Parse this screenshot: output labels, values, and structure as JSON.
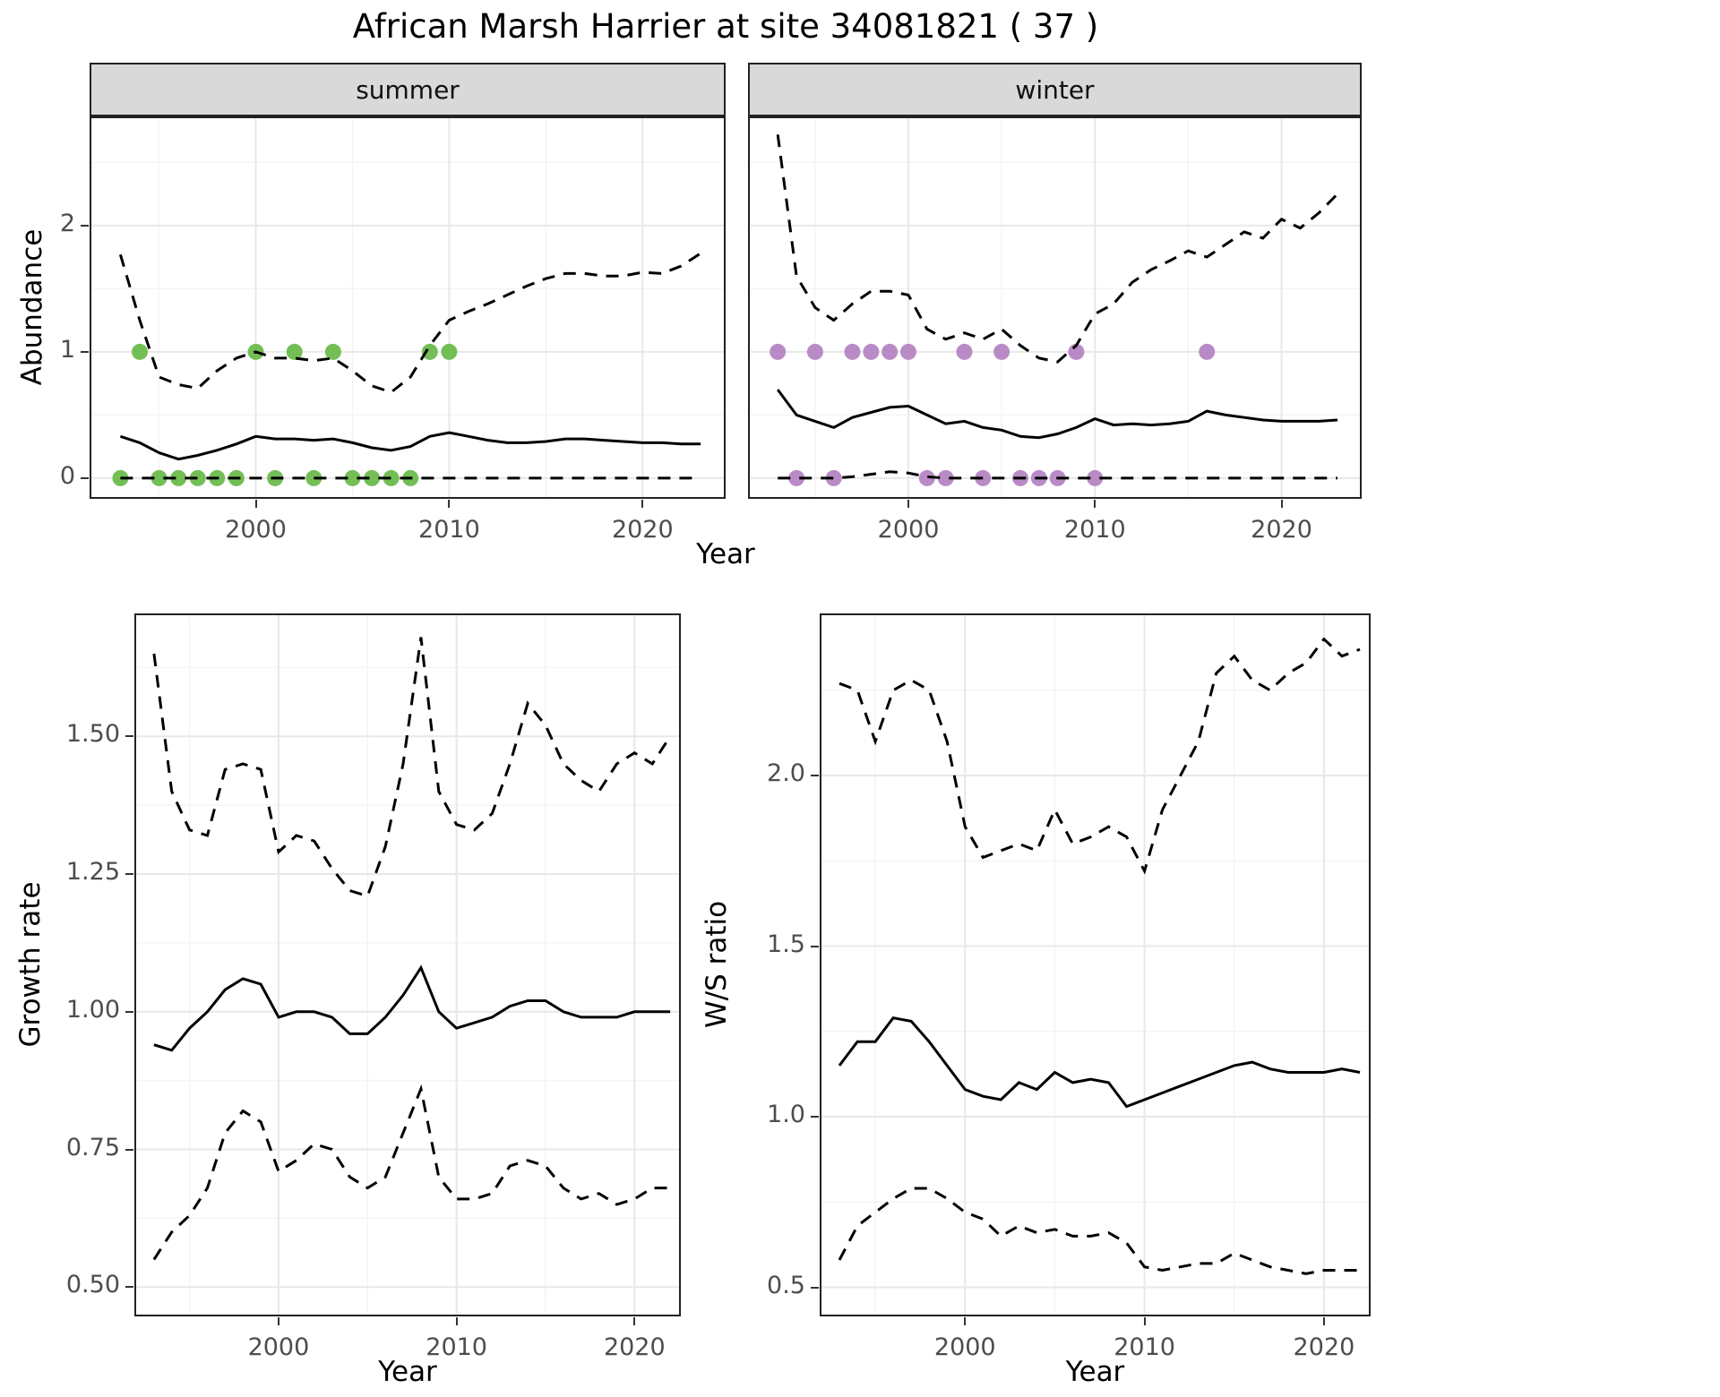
{
  "title": "African Marsh Harrier at site 34081821 ( 37 )",
  "colors": {
    "line": "#000000",
    "summer_points": "#74be56",
    "winter_points": "#b88bc7",
    "strip_bg": "#d9d9d9",
    "panel_border": "#222222",
    "grid_major": "#e8e8e8",
    "grid_minor": "#f4f4f4",
    "tick_label": "#4d4d4d"
  },
  "chart_data": [
    {
      "id": "abundance-summer",
      "type": "line",
      "facet": "summer",
      "xlabel": "Year",
      "ylabel": "Abundance",
      "xlim": [
        1991.5,
        2024.2
      ],
      "ylim": [
        -0.15,
        2.85
      ],
      "xticks": [
        2000,
        2010,
        2020
      ],
      "yticks": [
        0,
        1,
        2
      ],
      "ytick_labels": [
        "0",
        "1",
        "2"
      ],
      "years": [
        1993,
        1994,
        1995,
        1996,
        1997,
        1998,
        1999,
        2000,
        2001,
        2002,
        2003,
        2004,
        2005,
        2006,
        2007,
        2008,
        2009,
        2010,
        2011,
        2012,
        2013,
        2014,
        2015,
        2016,
        2017,
        2018,
        2019,
        2020,
        2021,
        2022,
        2023
      ],
      "series": [
        {
          "name": "upper_ci",
          "style": "dashed",
          "values": [
            1.77,
            1.25,
            0.8,
            0.74,
            0.71,
            0.85,
            0.95,
            1.0,
            0.95,
            0.95,
            0.93,
            0.95,
            0.85,
            0.73,
            0.68,
            0.8,
            1.05,
            1.25,
            1.32,
            1.38,
            1.45,
            1.52,
            1.58,
            1.62,
            1.62,
            1.6,
            1.6,
            1.63,
            1.62,
            1.68,
            1.78
          ]
        },
        {
          "name": "mean",
          "style": "solid",
          "values": [
            0.33,
            0.28,
            0.2,
            0.15,
            0.18,
            0.22,
            0.27,
            0.33,
            0.31,
            0.31,
            0.3,
            0.31,
            0.28,
            0.24,
            0.22,
            0.25,
            0.33,
            0.36,
            0.33,
            0.3,
            0.28,
            0.28,
            0.29,
            0.31,
            0.31,
            0.3,
            0.29,
            0.28,
            0.28,
            0.27,
            0.27
          ]
        },
        {
          "name": "lower_ci",
          "style": "dashed",
          "values": [
            0,
            0,
            0,
            0,
            0,
            0,
            0,
            0,
            0,
            0,
            0,
            0,
            0,
            0,
            0,
            0,
            0,
            0,
            0,
            0,
            0,
            0,
            0,
            0,
            0,
            0,
            0,
            0,
            0,
            0,
            0
          ]
        }
      ],
      "points": {
        "name": "observed-counts-summer",
        "color": "#74be56",
        "x": [
          1993,
          1994,
          1995,
          1996,
          1997,
          1998,
          1999,
          2000,
          2001,
          2002,
          2003,
          2004,
          2005,
          2006,
          2007,
          2008,
          2009,
          2010
        ],
        "y": [
          0,
          1,
          0,
          0,
          0,
          0,
          0,
          1,
          0,
          1,
          0,
          1,
          0,
          0,
          0,
          0,
          1,
          1
        ]
      }
    },
    {
      "id": "abundance-winter",
      "type": "line",
      "facet": "winter",
      "xlabel": "Year",
      "ylabel": "Abundance",
      "xlim": [
        1991.5,
        2024.2
      ],
      "ylim": [
        -0.15,
        2.85
      ],
      "xticks": [
        2000,
        2010,
        2020
      ],
      "yticks": [
        0,
        1,
        2
      ],
      "ytick_labels": [
        "0",
        "1",
        "2"
      ],
      "years": [
        1993,
        1994,
        1995,
        1996,
        1997,
        1998,
        1999,
        2000,
        2001,
        2002,
        2003,
        2004,
        2005,
        2006,
        2007,
        2008,
        2009,
        2010,
        2011,
        2012,
        2013,
        2014,
        2015,
        2016,
        2017,
        2018,
        2019,
        2020,
        2021,
        2022,
        2023
      ],
      "series": [
        {
          "name": "upper_ci",
          "style": "dashed",
          "values": [
            2.72,
            1.6,
            1.35,
            1.25,
            1.38,
            1.48,
            1.48,
            1.45,
            1.18,
            1.1,
            1.15,
            1.1,
            1.18,
            1.05,
            0.95,
            0.92,
            1.05,
            1.3,
            1.38,
            1.55,
            1.65,
            1.72,
            1.8,
            1.75,
            1.85,
            1.95,
            1.9,
            2.05,
            1.98,
            2.1,
            2.25
          ]
        },
        {
          "name": "mean",
          "style": "solid",
          "values": [
            0.7,
            0.5,
            0.45,
            0.4,
            0.48,
            0.52,
            0.56,
            0.57,
            0.5,
            0.43,
            0.45,
            0.4,
            0.38,
            0.33,
            0.32,
            0.35,
            0.4,
            0.47,
            0.42,
            0.43,
            0.42,
            0.43,
            0.45,
            0.53,
            0.5,
            0.48,
            0.46,
            0.45,
            0.45,
            0.45,
            0.46
          ]
        },
        {
          "name": "lower_ci",
          "style": "dashed",
          "values": [
            0,
            0,
            0,
            0,
            0.01,
            0.03,
            0.05,
            0.04,
            0.01,
            0,
            0,
            0,
            0,
            0,
            0,
            0,
            0,
            0,
            0,
            0,
            0,
            0,
            0,
            0,
            0,
            0,
            0,
            0,
            0,
            0,
            0
          ]
        }
      ],
      "points": {
        "name": "observed-counts-winter",
        "color": "#b88bc7",
        "x": [
          1993,
          1994,
          1995,
          1996,
          1997,
          1998,
          1999,
          2000,
          2001,
          2002,
          2003,
          2004,
          2005,
          2006,
          2007,
          2008,
          2009,
          2010,
          2016
        ],
        "y": [
          1,
          0,
          1,
          0,
          1,
          1,
          1,
          1,
          0,
          0,
          1,
          0,
          1,
          0,
          0,
          0,
          1,
          0,
          1
        ]
      }
    },
    {
      "id": "growth-rate",
      "type": "line",
      "facet": null,
      "xlabel": "Year",
      "ylabel": "Growth rate",
      "xlim": [
        1992.0,
        2022.5
      ],
      "ylim": [
        0.45,
        1.72
      ],
      "xticks": [
        2000,
        2010,
        2020
      ],
      "yticks": [
        0.5,
        0.75,
        1.0,
        1.25,
        1.5
      ],
      "ytick_labels": [
        "0.50",
        "0.75",
        "1.00",
        "1.25",
        "1.50"
      ],
      "years": [
        1993,
        1994,
        1995,
        1996,
        1997,
        1998,
        1999,
        2000,
        2001,
        2002,
        2003,
        2004,
        2005,
        2006,
        2007,
        2008,
        2009,
        2010,
        2011,
        2012,
        2013,
        2014,
        2015,
        2016,
        2017,
        2018,
        2019,
        2020,
        2021,
        2022
      ],
      "series": [
        {
          "name": "upper_ci",
          "style": "dashed",
          "values": [
            1.65,
            1.4,
            1.33,
            1.32,
            1.44,
            1.45,
            1.44,
            1.29,
            1.32,
            1.31,
            1.26,
            1.22,
            1.21,
            1.3,
            1.45,
            1.68,
            1.4,
            1.34,
            1.33,
            1.36,
            1.45,
            1.56,
            1.52,
            1.45,
            1.42,
            1.4,
            1.45,
            1.47,
            1.45,
            1.5
          ]
        },
        {
          "name": "mean",
          "style": "solid",
          "values": [
            0.94,
            0.93,
            0.97,
            1.0,
            1.04,
            1.06,
            1.05,
            0.99,
            1.0,
            1.0,
            0.99,
            0.96,
            0.96,
            0.99,
            1.03,
            1.08,
            1.0,
            0.97,
            0.98,
            0.99,
            1.01,
            1.02,
            1.02,
            1.0,
            0.99,
            0.99,
            0.99,
            1.0,
            1.0,
            1.0
          ]
        },
        {
          "name": "lower_ci",
          "style": "dashed",
          "values": [
            0.55,
            0.6,
            0.63,
            0.68,
            0.78,
            0.82,
            0.8,
            0.71,
            0.73,
            0.76,
            0.75,
            0.7,
            0.68,
            0.7,
            0.78,
            0.86,
            0.7,
            0.66,
            0.66,
            0.67,
            0.72,
            0.73,
            0.72,
            0.68,
            0.66,
            0.67,
            0.65,
            0.66,
            0.68,
            0.68
          ]
        }
      ],
      "points": null
    },
    {
      "id": "ws-ratio",
      "type": "line",
      "facet": null,
      "xlabel": "Year",
      "ylabel": "W/S ratio",
      "xlim": [
        1992.0,
        2022.5
      ],
      "ylim": [
        0.42,
        2.47
      ],
      "xticks": [
        2000,
        2010,
        2020
      ],
      "yticks": [
        0.5,
        1.0,
        1.5,
        2.0
      ],
      "ytick_labels": [
        "0.5",
        "1.0",
        "1.5",
        "2.0"
      ],
      "years": [
        1993,
        1994,
        1995,
        1996,
        1997,
        1998,
        1999,
        2000,
        2001,
        2002,
        2003,
        2004,
        2005,
        2006,
        2007,
        2008,
        2009,
        2010,
        2011,
        2012,
        2013,
        2014,
        2015,
        2016,
        2017,
        2018,
        2019,
        2020,
        2021,
        2022
      ],
      "series": [
        {
          "name": "upper_ci",
          "style": "dashed",
          "values": [
            2.27,
            2.25,
            2.1,
            2.25,
            2.28,
            2.25,
            2.1,
            1.85,
            1.76,
            1.78,
            1.8,
            1.78,
            1.9,
            1.8,
            1.82,
            1.85,
            1.82,
            1.72,
            1.9,
            2.0,
            2.1,
            2.3,
            2.35,
            2.28,
            2.25,
            2.3,
            2.33,
            2.4,
            2.35,
            2.37
          ]
        },
        {
          "name": "mean",
          "style": "solid",
          "values": [
            1.15,
            1.22,
            1.22,
            1.29,
            1.28,
            1.22,
            1.15,
            1.08,
            1.06,
            1.05,
            1.1,
            1.08,
            1.13,
            1.1,
            1.11,
            1.1,
            1.03,
            1.05,
            1.07,
            1.09,
            1.11,
            1.13,
            1.15,
            1.16,
            1.14,
            1.13,
            1.13,
            1.13,
            1.14,
            1.13
          ]
        },
        {
          "name": "lower_ci",
          "style": "dashed",
          "values": [
            0.58,
            0.68,
            0.72,
            0.76,
            0.79,
            0.79,
            0.76,
            0.72,
            0.7,
            0.65,
            0.68,
            0.66,
            0.67,
            0.65,
            0.65,
            0.66,
            0.63,
            0.56,
            0.55,
            0.56,
            0.57,
            0.57,
            0.6,
            0.58,
            0.56,
            0.55,
            0.54,
            0.55,
            0.55,
            0.55
          ]
        }
      ],
      "points": null
    }
  ]
}
